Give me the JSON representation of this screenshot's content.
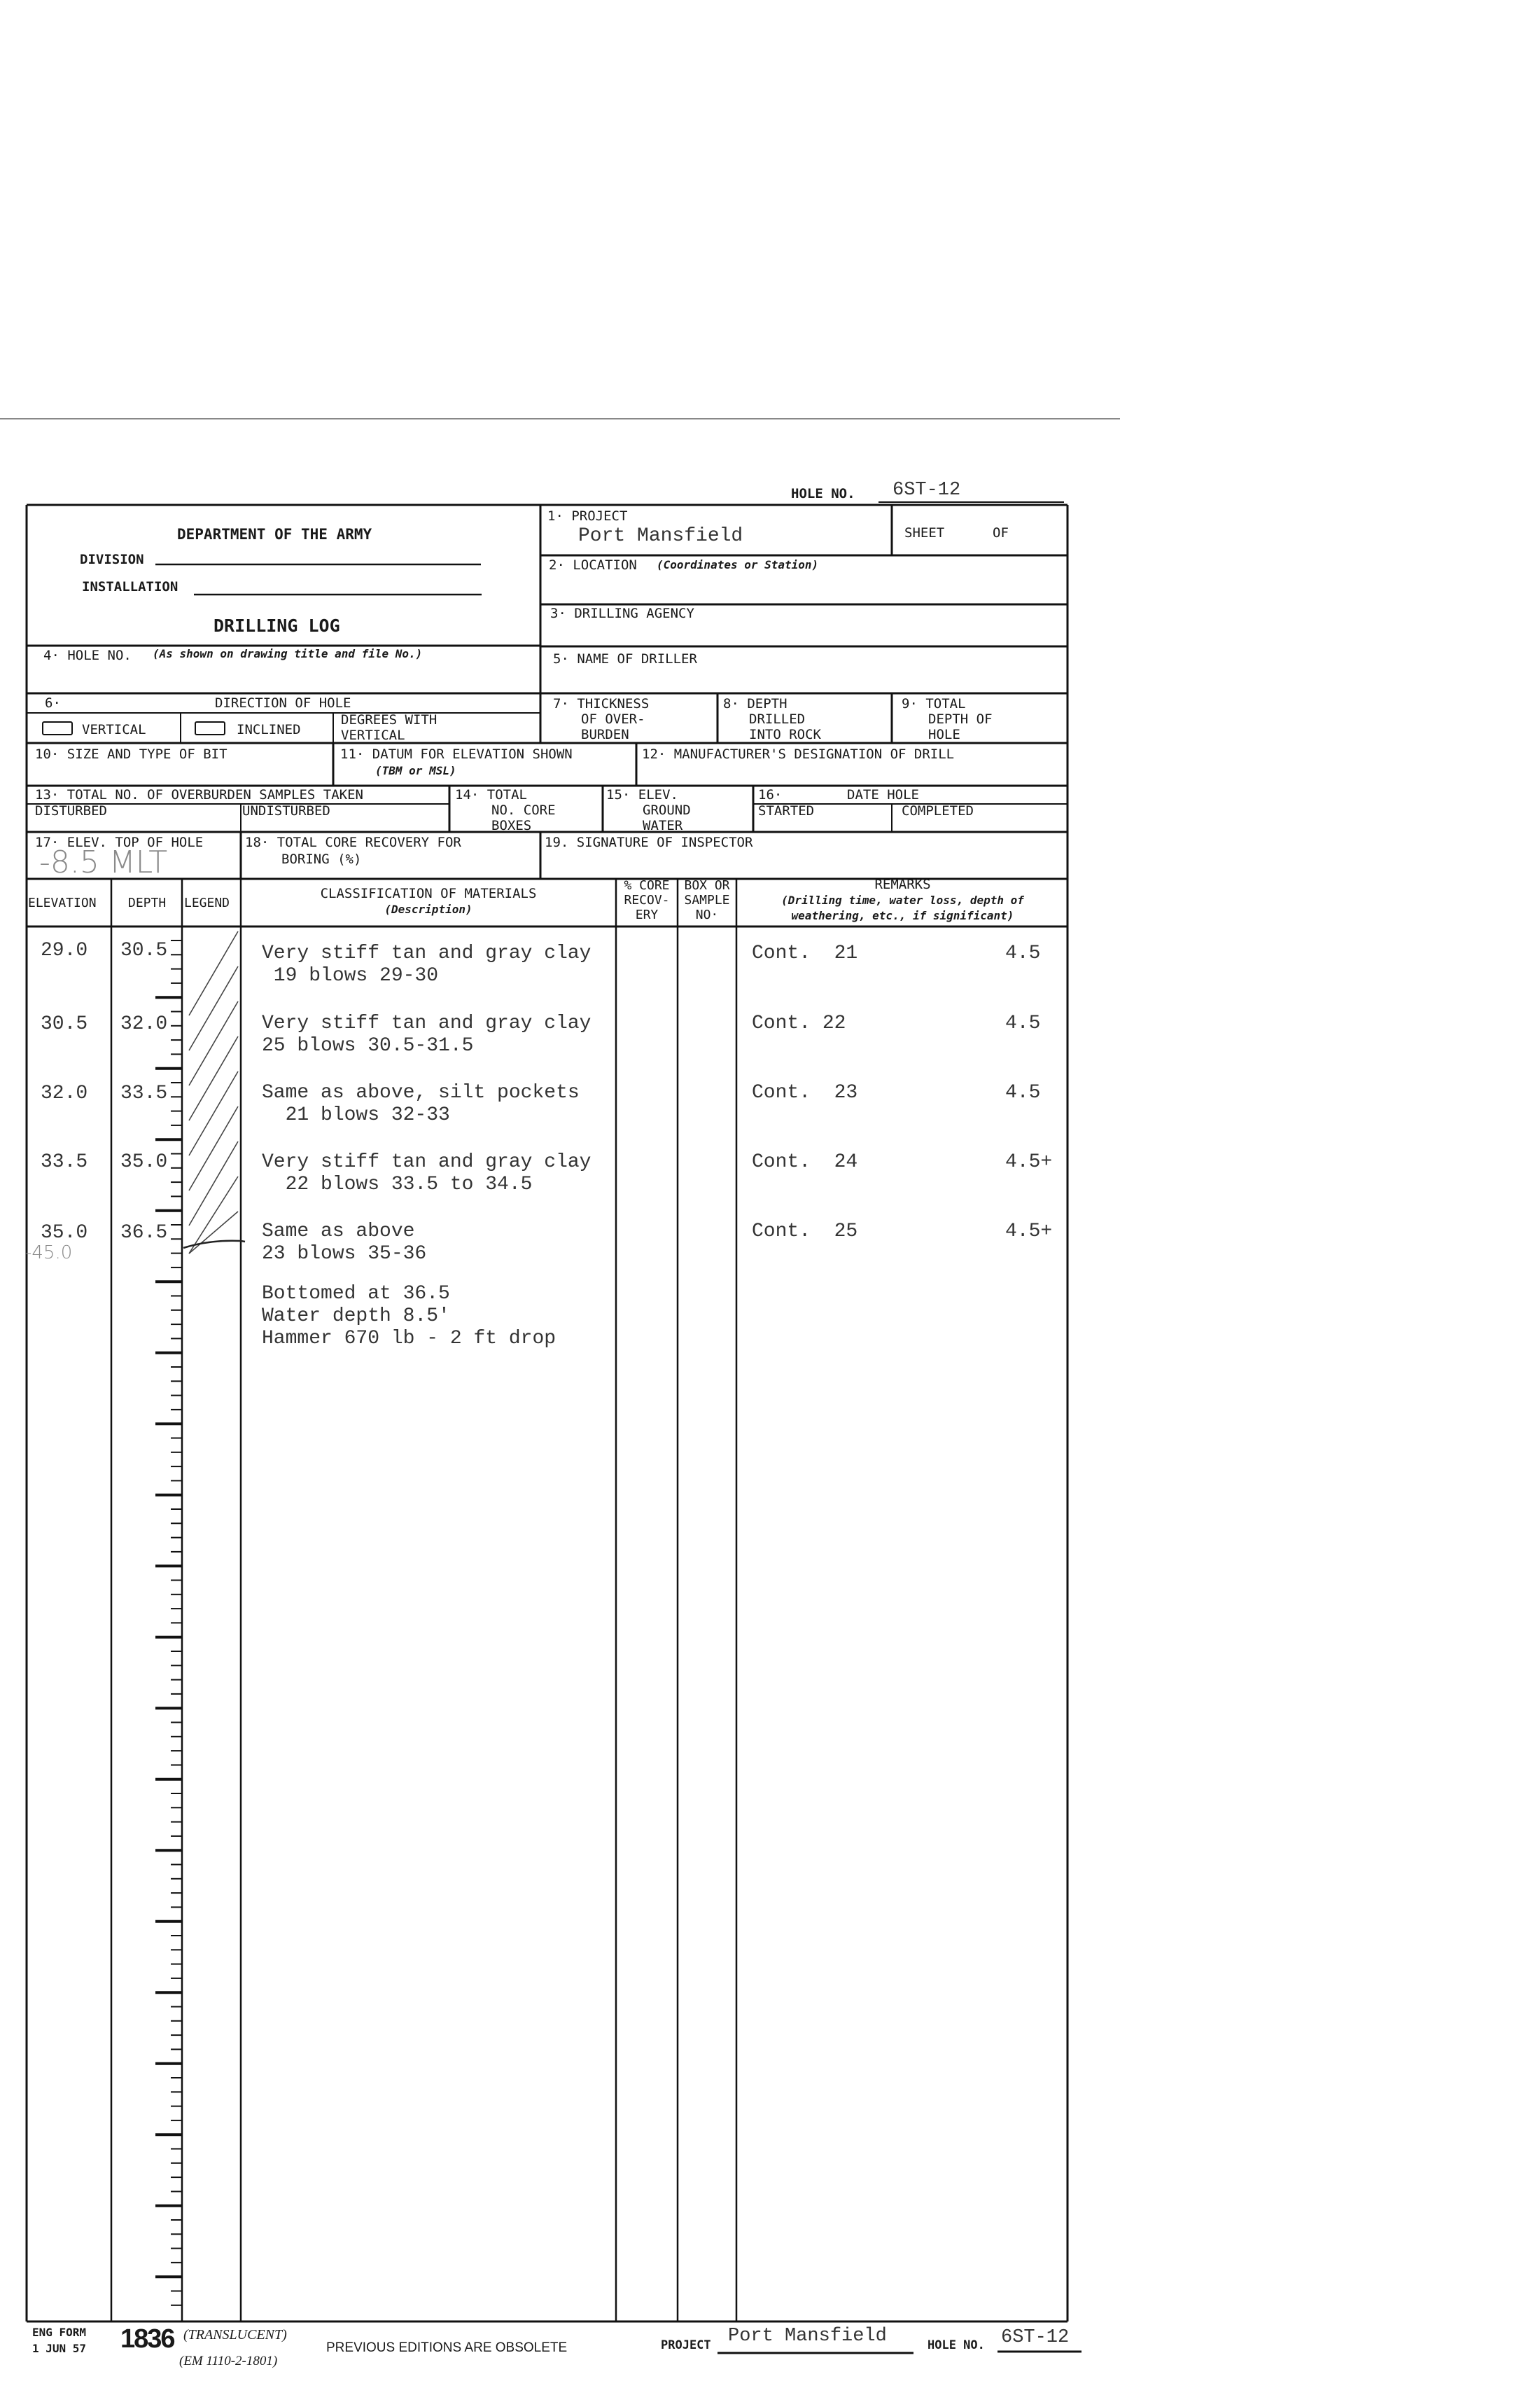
{
  "header": {
    "hole_no_label": "HOLE NO.",
    "hole_no_value": "6ST-12",
    "department": "DEPARTMENT OF THE ARMY",
    "division_label": "DIVISION",
    "installation_label": "INSTALLATION",
    "title": "DRILLING LOG",
    "project_label": "1· PROJECT",
    "project_value": "Port Mansfield",
    "sheet_label": "SHEET",
    "of_label": "OF",
    "location_label": "2· LOCATION",
    "location_hint": "(Coordinates or Station)",
    "agency_label": "3· DRILLING AGENCY",
    "hole_no_field_label": "4· HOLE NO.",
    "hole_no_field_hint": "(As shown on drawing title and file No.)",
    "driller_label": "5· NAME OF DRILLER",
    "direction_num": "6·",
    "direction_label": "DIRECTION OF HOLE",
    "vertical_label": "VERTICAL",
    "inclined_label": "INCLINED",
    "degrees_label_1": "DEGREES WITH",
    "degrees_label_2": "VERTICAL",
    "thickness_1": "7· THICKNESS",
    "thickness_2": "OF OVER-",
    "thickness_3": "BURDEN",
    "depth_rock_1": "8· DEPTH",
    "depth_rock_2": "DRILLED",
    "depth_rock_3": "INTO ROCK",
    "total_depth_1": "9· TOTAL",
    "total_depth_2": "DEPTH OF",
    "total_depth_3": "HOLE",
    "bit_label": "10· SIZE AND TYPE OF BIT",
    "datum_label": "11· DATUM FOR ELEVATION SHOWN",
    "datum_hint": "(TBM or MSL)",
    "manufacturer_label": "12· MANUFACTURER'S DESIGNATION OF DRILL",
    "samples_label": "13· TOTAL NO. OF OVERBURDEN SAMPLES TAKEN",
    "disturbed_label": "DISTURBED",
    "undisturbed_label": "UNDISTURBED",
    "core_boxes_1": "14· TOTAL",
    "core_boxes_2": "NO. CORE",
    "core_boxes_3": "BOXES",
    "ground_water_1": "15· ELEV.",
    "ground_water_2": "GROUND",
    "ground_water_3": "WATER",
    "date_num": "16·",
    "date_label": "DATE HOLE",
    "started_label": "STARTED",
    "completed_label": "COMPLETED",
    "elev_top_label": "17· ELEV. TOP OF HOLE",
    "elev_top_value": "-8.5 MLT",
    "core_recovery_1": "18· TOTAL CORE RECOVERY FOR",
    "core_recovery_2": "BORING (%)",
    "signature_label": "19. SIGNATURE OF INSPECTOR"
  },
  "table": {
    "columns": {
      "elevation": "ELEVATION",
      "depth": "DEPTH",
      "legend": "LEGEND",
      "classification": "CLASSIFICATION OF MATERIALS",
      "classification_hint": "(Description)",
      "core_1": "% CORE",
      "core_2": "RECOV-",
      "core_3": "ERY",
      "box_1": "BOX OR",
      "box_2": "SAMPLE",
      "box_3": "NO·",
      "remarks": "REMARKS",
      "remarks_hint_1": "(Drilling time, water loss, depth of",
      "remarks_hint_2": "weathering, etc., if significant)"
    },
    "rows": [
      {
        "elevation": "29.0",
        "depth": "30.5",
        "desc_1": "Very stiff tan and gray clay",
        "desc_2": " 19 blows 29-30",
        "remark": "Cont.  21",
        "value": "4.5"
      },
      {
        "elevation": "30.5",
        "depth": "32.0",
        "desc_1": "Very stiff tan and gray clay",
        "desc_2": "25 blows 30.5-31.5",
        "remark": "Cont. 22",
        "value": "4.5"
      },
      {
        "elevation": "32.0",
        "depth": "33.5",
        "desc_1": "Same as above, silt pockets",
        "desc_2": "  21 blows 32-33",
        "remark": "Cont.  23",
        "value": "4.5"
      },
      {
        "elevation": "33.5",
        "depth": "35.0",
        "desc_1": "Very stiff tan and gray clay",
        "desc_2": "  22 blows 33.5 to 34.5",
        "remark": "Cont.  24",
        "value": "4.5+"
      },
      {
        "elevation": "35.0",
        "depth": "36.5",
        "desc_1": "Same as above",
        "desc_2": "23 blows 35-36",
        "remark": "Cont.  25",
        "value": "4.5+"
      }
    ],
    "handwritten_elevation": "-45.0",
    "notes": [
      "Bottomed at 36.5",
      "Water depth 8.5'",
      "Hammer 670 lb - 2 ft drop"
    ]
  },
  "footer": {
    "eng_form": "ENG FORM",
    "date": "1 JUN 57",
    "form_number": "1836",
    "translucent": "(TRANSLUCENT)",
    "em": "(EM 1110-2-1801)",
    "obsolete": "PREVIOUS EDITIONS ARE OBSOLETE",
    "project_label": "PROJECT",
    "project_value": "Port Mansfield",
    "hole_no_label": "HOLE NO.",
    "hole_no_value": "6ST-12"
  }
}
